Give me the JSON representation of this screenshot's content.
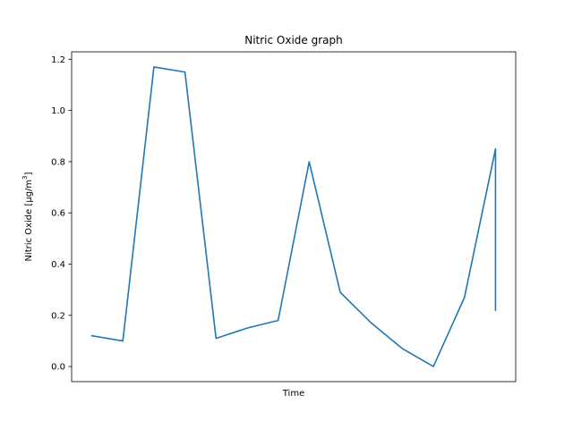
{
  "chart_data": {
    "type": "line",
    "title": "Nitric Oxide graph",
    "xlabel": "Time",
    "ylabel": "Nitric Oxide [μg/m",
    "ylabel_sup": "3",
    "ylabel_tail": "]",
    "ylim": [
      -0.059,
      1.229
    ],
    "yticks": [
      0.0,
      0.2,
      0.4,
      0.6,
      0.8,
      1.0,
      1.2
    ],
    "ytick_labels": [
      "0.0",
      "0.2",
      "0.4",
      "0.6",
      "0.8",
      "1.0",
      "1.2"
    ],
    "xticks_visible": false,
    "grid": false,
    "series": [
      {
        "color": "#1f77b4",
        "x": [
          0,
          1,
          2,
          3,
          4,
          5,
          6,
          7,
          8,
          9,
          10,
          11,
          12,
          13,
          13
        ],
        "y": [
          0.12,
          0.1,
          1.17,
          1.15,
          0.11,
          0.15,
          0.18,
          0.8,
          0.29,
          0.17,
          0.07,
          0.0,
          0.27,
          0.85,
          0.22
        ]
      }
    ]
  }
}
